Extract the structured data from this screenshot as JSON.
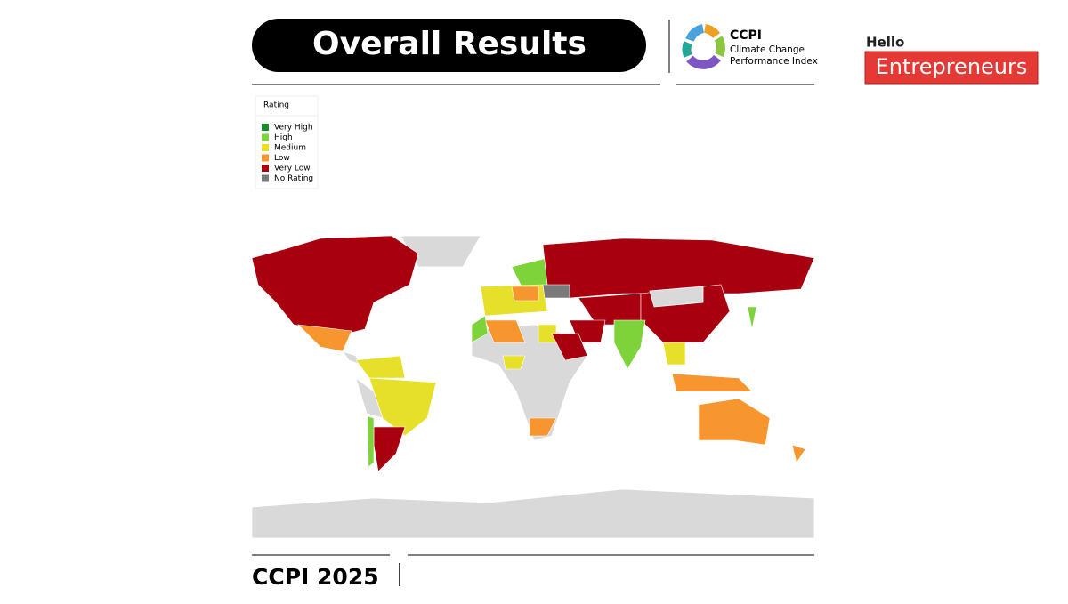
{
  "header": {
    "title": "Overall Results"
  },
  "logo": {
    "name": "CCPI",
    "line1": "Climate Change",
    "line2": "Performance Index"
  },
  "brand": {
    "hello": "Hello",
    "name": "Entrepreneurs"
  },
  "legend": {
    "title": "Rating",
    "items": [
      {
        "label": "Very High",
        "color": "#1a8a2e"
      },
      {
        "label": "High",
        "color": "#7ed33a"
      },
      {
        "label": "Medium",
        "color": "#e6e02a"
      },
      {
        "label": "Low",
        "color": "#f7962f"
      },
      {
        "label": "Very Low",
        "color": "#a8000f"
      },
      {
        "label": "No Rating",
        "color": "#7a7a7a"
      }
    ]
  },
  "footer": {
    "title": "CCPI 2025"
  }
}
